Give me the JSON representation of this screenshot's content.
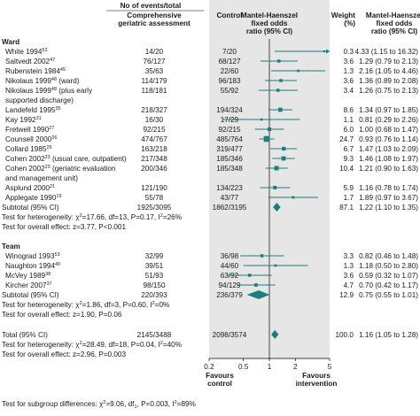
{
  "chart_data": {
    "type": "forest",
    "headers": {
      "group": "No of events/total",
      "col1": [
        "Comprehensive",
        "geriatric assessment"
      ],
      "col2": "Control",
      "or": [
        "Mantel-Haenszel",
        "fixed odds",
        "ratio (95% CI)"
      ],
      "weight": [
        "Weight",
        "(%)"
      ],
      "orci": [
        "Mantel-Haenszel",
        "fixed odds",
        "ratio (95% CI)"
      ]
    },
    "axis": {
      "scale": "log",
      "ticks": [
        "0.2",
        "0.5",
        "1",
        "2",
        "5"
      ],
      "tick_values": [
        0.2,
        0.5,
        1,
        2,
        5
      ],
      "left_label": [
        "Favours",
        "control"
      ],
      "right_label": [
        "Favours",
        "intervention"
      ],
      "shaded_range": [
        0.2,
        5
      ]
    },
    "groups": [
      {
        "title": "Ward",
        "studies": [
          {
            "name": [
              "White 1994",
              "52"
            ],
            "cga": "14/20",
            "ctrl": "7/20",
            "or": 4.33,
            "lo": 1.15,
            "hi": 16.32,
            "weight": "0.3",
            "ci_text": "4.33 (1.15 to 16.32)"
          },
          {
            "name": [
              "Saltvedt 2002",
              "47"
            ],
            "cga": "76/127",
            "ctrl": "68/127",
            "or": 1.29,
            "lo": 0.79,
            "hi": 2.13,
            "weight": "3.6",
            "ci_text": "1.29 (0.79 to 2.13)"
          },
          {
            "name": [
              "Rubenstein 1984",
              "45"
            ],
            "cga": "35/63",
            "ctrl": "22/60",
            "or": 2.16,
            "lo": 1.05,
            "hi": 4.46,
            "weight": "1.3",
            "ci_text": "2.16 (1.05 to 4.46)"
          },
          {
            "name": [
              "Nikolaus 1999",
              "48",
              " (ward)"
            ],
            "cga": "114/179",
            "ctrl": "96/183",
            "or": 1.36,
            "lo": 0.89,
            "hi": 2.08,
            "weight": "3.6",
            "ci_text": "1.36 (0.89 to 2.08)"
          },
          {
            "name": [
              "Nikolaus 1999",
              "48",
              " (plus early"
            ],
            "name2": "supported discharge)",
            "cga": "118/181",
            "ctrl": "55/92",
            "or": 1.26,
            "lo": 0.75,
            "hi": 2.13,
            "weight": "3.4",
            "ci_text": "1.26 (0.75 to 2.13)"
          },
          {
            "name": [
              "Landefeld 1995",
              "35"
            ],
            "cga": "218/327",
            "ctrl": "194/324",
            "or": 1.34,
            "lo": 0.97,
            "hi": 1.85,
            "weight": "8.6",
            "ci_text": "1.34 (0.97 to 1.85)"
          },
          {
            "name": [
              "Kay 1992",
              "31"
            ],
            "cga": "16/30",
            "ctrl": "17/29",
            "or": 0.81,
            "lo": 0.29,
            "hi": 2.26,
            "weight": "1.1",
            "ci_text": "0.81 (0.29 to 2.26)"
          },
          {
            "name": [
              "Fretwell 1990",
              "27"
            ],
            "cga": "92/215",
            "ctrl": "92/215",
            "or": 1.0,
            "lo": 0.68,
            "hi": 1.47,
            "weight": "6.0",
            "ci_text": "1.00 (0.68 to 1.47)"
          },
          {
            "name": [
              "Counsell 2000",
              "26"
            ],
            "cga": "474/767",
            "ctrl": "485/764",
            "or": 0.93,
            "lo": 0.76,
            "hi": 1.14,
            "weight": "24.7",
            "ci_text": "0.93 (0.76 to 1.14)"
          },
          {
            "name": [
              "Collard 1985",
              "25"
            ],
            "cga": "163/218",
            "ctrl": "319/477",
            "or": 1.47,
            "lo": 1.03,
            "hi": 2.09,
            "weight": "6.7",
            "ci_text": "1.47 (1.03 to 2.09)"
          },
          {
            "name": [
              "Cohen 2002",
              "23",
              " (usual care, outpatient)"
            ],
            "cga": "217/348",
            "ctrl": "185/346",
            "or": 1.46,
            "lo": 1.08,
            "hi": 1.97,
            "weight": "9.3",
            "ci_text": "1.46 (1.08 to 1.97)"
          },
          {
            "name": [
              "Cohen 2002",
              "23",
              " (geriatric evaluation"
            ],
            "name2": "and management unit)",
            "cga": "200/346",
            "ctrl": "185/348",
            "or": 1.21,
            "lo": 0.9,
            "hi": 1.63,
            "weight": "10.4",
            "ci_text": "1.21 (0.90 to 1.63)"
          },
          {
            "name": [
              "Asplund 2000",
              "21"
            ],
            "cga": "121/190",
            "ctrl": "134/223",
            "or": 1.16,
            "lo": 0.78,
            "hi": 1.74,
            "weight": "5.9",
            "ci_text": "1.16 (0.78 to 1.74)"
          },
          {
            "name": [
              "Applegate 1990",
              "19"
            ],
            "cga": "55/78",
            "ctrl": "43/77",
            "or": 1.89,
            "lo": 0.97,
            "hi": 3.67,
            "weight": "1.7",
            "ci_text": "1.89 (0.97 to 3.67)"
          }
        ],
        "subtotal": {
          "label": "Subtotal (95% CI)",
          "cga": "1925/3095",
          "ctrl": "1862/3195",
          "or": 1.22,
          "lo": 1.1,
          "hi": 1.35,
          "weight": "87.1",
          "ci_text": "1.22 (1.10 to 1.35)"
        },
        "het": {
          "pre": "Test for heterogeneity: χ",
          "sup1": "2",
          "mid": "=17.66, df=13, P=0.17, I",
          "sup2": "2",
          "post": "=26%"
        },
        "overall": "Test for overall effect: z=3.77, P<0.001"
      },
      {
        "title": "Team",
        "studies": [
          {
            "name": [
              "Winograd 1993",
              "53"
            ],
            "cga": "32/99",
            "ctrl": "36/98",
            "or": 0.82,
            "lo": 0.46,
            "hi": 1.48,
            "weight": "3.3",
            "ci_text": "0.82 (0.46 to 1.48)"
          },
          {
            "name": [
              "Naughton 1994",
              "40"
            ],
            "cga": "39/51",
            "ctrl": "44/60",
            "or": 1.18,
            "lo": 0.5,
            "hi": 2.8,
            "weight": "1.3",
            "ci_text": "1.18 (0.50 to 2.80)"
          },
          {
            "name": [
              "McVey 1989",
              "38"
            ],
            "cga": "51/93",
            "ctrl": "63/92",
            "or": 0.59,
            "lo": 0.32,
            "hi": 1.07,
            "weight": "3.6",
            "ci_text": "0.59 (0.32 to 1.07)"
          },
          {
            "name": [
              "Kircher 2007",
              "37"
            ],
            "cga": "98/150",
            "ctrl": "94/129",
            "or": 0.7,
            "lo": 0.42,
            "hi": 1.17,
            "weight": "4.7",
            "ci_text": "0.70 (0.42 to 1.17)"
          }
        ],
        "subtotal": {
          "label": "Subtotal (95% CI)",
          "cga": "220/393",
          "ctrl": "236/379",
          "or": 0.75,
          "lo": 0.55,
          "hi": 1.01,
          "weight": "12.9",
          "ci_text": "0.75 (0.55 to 1.01)"
        },
        "het": {
          "pre": "Test for heterogeneity: χ",
          "sup1": "2",
          "mid": "=1.86, df=3, P=0.60, I",
          "sup2": "2",
          "post": "=0%"
        },
        "overall": "Test for overall effect: z=1.90, P=0.06"
      }
    ],
    "total": {
      "label": "Total (95% CI)",
      "cga": "2145/3488",
      "ctrl": "2098/3574",
      "or": 1.16,
      "lo": 1.05,
      "hi": 1.28,
      "weight": "100.0",
      "ci_text": "1.16 (1.05 to 1.28)"
    },
    "total_het": {
      "pre": "Test for heterogeneity: χ",
      "sup1": "2",
      "mid": "=28.49, df=18, P=0.04, I",
      "sup2": "2",
      "post": "=40%"
    },
    "total_overall": "Test for overall effect: z=2.96, P=0.003",
    "subgroup": {
      "pre": "Test for subgroup differences: χ",
      "sup1": "2",
      "mid": "=9.06, df",
      "sub": "1",
      "mid2": ", P=0.003, I",
      "sup2": "2",
      "post": "=89%"
    },
    "colors": {
      "marker": "#1a7f7a",
      "shade": "#e6e6e6",
      "text": "#1a1a1a",
      "rule": "#888888"
    }
  }
}
